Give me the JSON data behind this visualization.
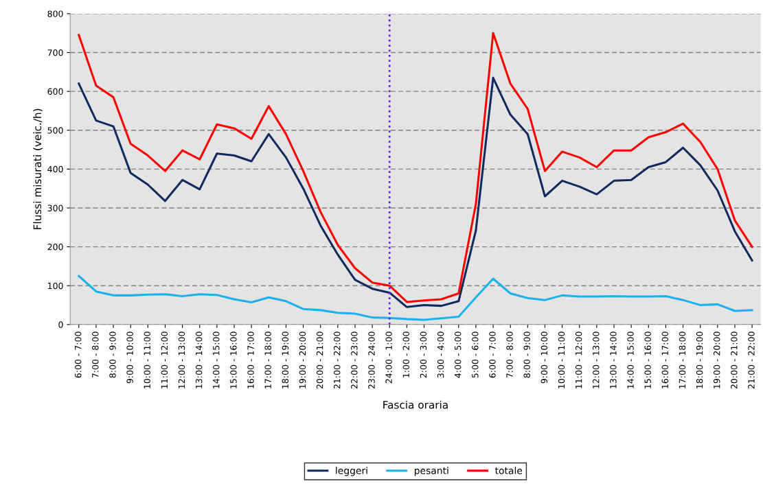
{
  "chart_data": {
    "type": "line",
    "xlabel": "Fascia oraria",
    "ylabel": "Flussi misurati (veic./h)",
    "categories": [
      "6:00 - 7:00",
      "7:00 - 8:00",
      "8:00 - 9:00",
      "9:00 - 10:00",
      "10:00 - 11:00",
      "11:00 - 12:00",
      "12:00 - 13:00",
      "13:00 - 14:00",
      "14:00 - 15:00",
      "15:00 - 16:00",
      "16:00 - 17:00",
      "17:00 - 18:00",
      "18:00 - 19:00",
      "19:00 - 20:00",
      "20:00 - 21:00",
      "21:00 - 22:00",
      "22:00 - 23:00",
      "23:00 - 24:00",
      "24:00 - 1:00",
      "1:00 - 2:00",
      "2:00 - 3:00",
      "3:00 - 4:00",
      "4:00 - 5:00",
      "5:00 - 6:00",
      "6:00 - 7:00",
      "7:00 - 8:00",
      "8:00 - 9:00",
      "9:00 - 10:00",
      "10:00 - 11:00",
      "11:00 - 12:00",
      "12:00 - 13:00",
      "13:00 - 14:00",
      "14:00 - 15:00",
      "15:00 - 16:00",
      "16:00 - 17:00",
      "17:00 - 18:00",
      "18:00 - 19:00",
      "19:00 - 20:00",
      "20:00 - 21:00",
      "21:00 - 22:00"
    ],
    "series": [
      {
        "name": "leggeri",
        "color": "#112a5e",
        "values": [
          620,
          525,
          510,
          390,
          360,
          318,
          372,
          348,
          440,
          435,
          420,
          490,
          430,
          350,
          255,
          180,
          115,
          92,
          82,
          45,
          50,
          48,
          60,
          242,
          635,
          540,
          490,
          330,
          370,
          355,
          335,
          370,
          372,
          405,
          418,
          455,
          410,
          345,
          240,
          165
        ]
      },
      {
        "name": "pesanti",
        "color": "#1ab2ea",
        "values": [
          125,
          85,
          75,
          75,
          77,
          78,
          73,
          78,
          76,
          65,
          57,
          70,
          60,
          40,
          37,
          30,
          28,
          18,
          17,
          14,
          12,
          16,
          20,
          70,
          118,
          80,
          68,
          63,
          75,
          72,
          72,
          73,
          72,
          72,
          73,
          63,
          50,
          52,
          35,
          37
        ]
      },
      {
        "name": "totale",
        "color": "#ff0000",
        "values": [
          745,
          615,
          585,
          465,
          435,
          395,
          448,
          425,
          515,
          505,
          478,
          562,
          490,
          395,
          290,
          205,
          145,
          108,
          100,
          58,
          62,
          65,
          80,
          310,
          750,
          620,
          555,
          395,
          445,
          430,
          405,
          448,
          448,
          482,
          495,
          517,
          470,
          400,
          268,
          200
        ]
      }
    ],
    "ylim": [
      0,
      800
    ],
    "yticks": [
      0,
      100,
      200,
      300,
      400,
      500,
      600,
      700,
      800
    ],
    "ref_lines": [
      {
        "axis": "x",
        "value": "24:00 - 1:00",
        "color": "#6a1aff",
        "line_style": "dotted"
      }
    ],
    "grid": "y",
    "legend": "bottom",
    "marker": "none",
    "line_style": "solid"
  }
}
